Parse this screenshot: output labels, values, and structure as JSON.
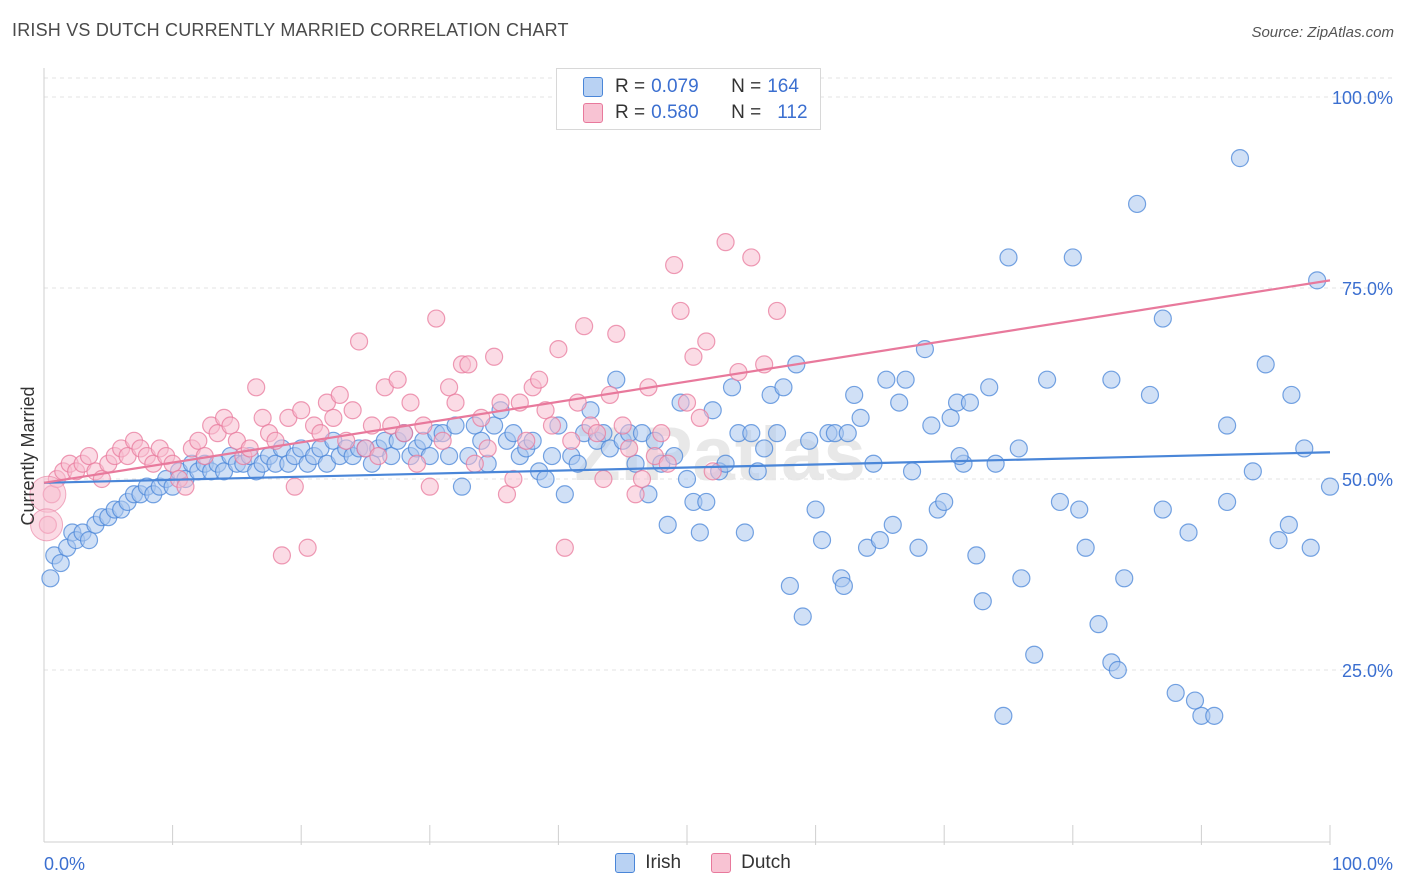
{
  "title": "IRISH VS DUTCH CURRENTLY MARRIED CORRELATION CHART",
  "source": "Source: ZipAtlas.com",
  "watermark": "ZIPatlas",
  "legend": [
    {
      "name": "Irish",
      "r_label": "R =",
      "r": "0.079",
      "n_label": "N =",
      "n": "164",
      "color": "#4a86d8",
      "fill": "#b9d2f3"
    },
    {
      "name": "Dutch",
      "r_label": "R =",
      "r": "0.580",
      "n_label": "N =",
      "n": "112",
      "color": "#e8799c",
      "fill": "#f8c3d3"
    }
  ],
  "chart_data": {
    "type": "scatter",
    "xlabel": "",
    "ylabel": "Currently Married",
    "xlim": [
      0,
      100
    ],
    "ylim": [
      0,
      105
    ],
    "x_tick_labels": [
      "0.0%",
      "100.0%"
    ],
    "y_tick_labels": [
      "25.0%",
      "50.0%",
      "75.0%",
      "100.0%"
    ],
    "y_ticks": [
      25,
      50,
      75,
      100
    ],
    "grid": "horizontal dashed",
    "legend_position": "top-center",
    "series": [
      {
        "name": "Irish",
        "color": "#4a86d8",
        "trend": [
          [
            0,
            49.5
          ],
          [
            100,
            53.5
          ]
        ],
        "points": [
          [
            0.5,
            37
          ],
          [
            0.8,
            40
          ],
          [
            1.3,
            39
          ],
          [
            1.8,
            41
          ],
          [
            2.2,
            43
          ],
          [
            2.5,
            42
          ],
          [
            3.0,
            43
          ],
          [
            3.5,
            42
          ],
          [
            4.0,
            44
          ],
          [
            4.5,
            45
          ],
          [
            5.0,
            45
          ],
          [
            5.5,
            46
          ],
          [
            6.0,
            46
          ],
          [
            6.5,
            47
          ],
          [
            7.0,
            48
          ],
          [
            7.5,
            48
          ],
          [
            8.0,
            49
          ],
          [
            8.5,
            48
          ],
          [
            9.0,
            49
          ],
          [
            9.5,
            50
          ],
          [
            10,
            49
          ],
          [
            10.5,
            51
          ],
          [
            11,
            50
          ],
          [
            11.5,
            52
          ],
          [
            12,
            51
          ],
          [
            12.5,
            52
          ],
          [
            13,
            51
          ],
          [
            13.5,
            52
          ],
          [
            14,
            51
          ],
          [
            14.5,
            53
          ],
          [
            15,
            52
          ],
          [
            15.5,
            52
          ],
          [
            16,
            53
          ],
          [
            16.5,
            51
          ],
          [
            17,
            52
          ],
          [
            17.5,
            53
          ],
          [
            18,
            52
          ],
          [
            18.5,
            54
          ],
          [
            19,
            52
          ],
          [
            19.5,
            53
          ],
          [
            20,
            54
          ],
          [
            20.5,
            52
          ],
          [
            21,
            53
          ],
          [
            21.5,
            54
          ],
          [
            22,
            52
          ],
          [
            22.5,
            55
          ],
          [
            23,
            53
          ],
          [
            23.5,
            54
          ],
          [
            24,
            53
          ],
          [
            24.5,
            54
          ],
          [
            25,
            54
          ],
          [
            25.5,
            52
          ],
          [
            26,
            54
          ],
          [
            26.5,
            55
          ],
          [
            27,
            53
          ],
          [
            27.5,
            55
          ],
          [
            28,
            56
          ],
          [
            28.5,
            53
          ],
          [
            29,
            54
          ],
          [
            29.5,
            55
          ],
          [
            30,
            53
          ],
          [
            30.5,
            56
          ],
          [
            31,
            56
          ],
          [
            31.5,
            53
          ],
          [
            32,
            57
          ],
          [
            32.5,
            49
          ],
          [
            33,
            53
          ],
          [
            33.5,
            57
          ],
          [
            34,
            55
          ],
          [
            34.5,
            52
          ],
          [
            35,
            57
          ],
          [
            35.5,
            59
          ],
          [
            36,
            55
          ],
          [
            36.5,
            56
          ],
          [
            37,
            53
          ],
          [
            37.5,
            54
          ],
          [
            38,
            55
          ],
          [
            38.5,
            51
          ],
          [
            39,
            50
          ],
          [
            39.5,
            53
          ],
          [
            40,
            57
          ],
          [
            40.5,
            48
          ],
          [
            41,
            53
          ],
          [
            41.5,
            52
          ],
          [
            42,
            56
          ],
          [
            42.5,
            59
          ],
          [
            43,
            55
          ],
          [
            43.5,
            56
          ],
          [
            44,
            54
          ],
          [
            44.5,
            63
          ],
          [
            45,
            55
          ],
          [
            45.5,
            56
          ],
          [
            46,
            52
          ],
          [
            46.5,
            56
          ],
          [
            47,
            48
          ],
          [
            47.5,
            55
          ],
          [
            48,
            52
          ],
          [
            48.5,
            44
          ],
          [
            49,
            53
          ],
          [
            49.5,
            60
          ],
          [
            50,
            50
          ],
          [
            50.5,
            47
          ],
          [
            51,
            43
          ],
          [
            51.5,
            47
          ],
          [
            52,
            59
          ],
          [
            52.5,
            51
          ],
          [
            53,
            52
          ],
          [
            53.5,
            62
          ],
          [
            54,
            56
          ],
          [
            54.5,
            43
          ],
          [
            55,
            56
          ],
          [
            55.5,
            51
          ],
          [
            56,
            54
          ],
          [
            56.5,
            61
          ],
          [
            57,
            56
          ],
          [
            57.5,
            62
          ],
          [
            58,
            36
          ],
          [
            58.5,
            65
          ],
          [
            59,
            32
          ],
          [
            59.5,
            55
          ],
          [
            60,
            46
          ],
          [
            60.5,
            42
          ],
          [
            61,
            56
          ],
          [
            61.5,
            56
          ],
          [
            62,
            37
          ],
          [
            62.5,
            56
          ],
          [
            63,
            61
          ],
          [
            63.5,
            58
          ],
          [
            64,
            41
          ],
          [
            64.5,
            52
          ],
          [
            65,
            42
          ],
          [
            65.5,
            63
          ],
          [
            66,
            44
          ],
          [
            66.5,
            60
          ],
          [
            67,
            63
          ],
          [
            67.5,
            51
          ],
          [
            68,
            41
          ],
          [
            68.5,
            67
          ],
          [
            69,
            57
          ],
          [
            69.5,
            46
          ],
          [
            70,
            47
          ],
          [
            70.5,
            58
          ],
          [
            71,
            60
          ],
          [
            71.5,
            52
          ],
          [
            72,
            60
          ],
          [
            72.5,
            40
          ],
          [
            73,
            34
          ],
          [
            73.5,
            62
          ],
          [
            74,
            52
          ],
          [
            75,
            79
          ],
          [
            76,
            37
          ],
          [
            77,
            27
          ],
          [
            78,
            63
          ],
          [
            79,
            47
          ],
          [
            80,
            79
          ],
          [
            81,
            41
          ],
          [
            82,
            31
          ],
          [
            83,
            63
          ],
          [
            84,
            37
          ],
          [
            85,
            86
          ],
          [
            86,
            61
          ],
          [
            87,
            46
          ],
          [
            88,
            22
          ],
          [
            89,
            43
          ],
          [
            90,
            19
          ],
          [
            91,
            19
          ],
          [
            92,
            47
          ],
          [
            93,
            92
          ],
          [
            94,
            51
          ],
          [
            95,
            65
          ],
          [
            96,
            42
          ],
          [
            97,
            61
          ],
          [
            98,
            54
          ],
          [
            99,
            76
          ],
          [
            100,
            49
          ],
          [
            62.2,
            36
          ],
          [
            71.2,
            53
          ],
          [
            74.6,
            19
          ],
          [
            75.8,
            54
          ],
          [
            80.5,
            46
          ],
          [
            83,
            26
          ],
          [
            87,
            71
          ],
          [
            89.5,
            21
          ],
          [
            92,
            57
          ],
          [
            96.8,
            44
          ],
          [
            98.5,
            41
          ],
          [
            83.5,
            25
          ]
        ]
      },
      {
        "name": "Dutch",
        "color": "#e8799c",
        "trend": [
          [
            0,
            49.5
          ],
          [
            100,
            76
          ]
        ],
        "points": [
          [
            0.3,
            44
          ],
          [
            0.6,
            48
          ],
          [
            1.0,
            50
          ],
          [
            1.5,
            51
          ],
          [
            2.0,
            52
          ],
          [
            2.5,
            51
          ],
          [
            3.0,
            52
          ],
          [
            3.5,
            53
          ],
          [
            4.0,
            51
          ],
          [
            4.5,
            50
          ],
          [
            5.0,
            52
          ],
          [
            5.5,
            53
          ],
          [
            6.0,
            54
          ],
          [
            6.5,
            53
          ],
          [
            7.0,
            55
          ],
          [
            7.5,
            54
          ],
          [
            8.0,
            53
          ],
          [
            8.5,
            52
          ],
          [
            9.0,
            54
          ],
          [
            9.5,
            53
          ],
          [
            10,
            52
          ],
          [
            10.5,
            50
          ],
          [
            11,
            49
          ],
          [
            11.5,
            54
          ],
          [
            12,
            55
          ],
          [
            12.5,
            53
          ],
          [
            13,
            57
          ],
          [
            13.5,
            56
          ],
          [
            14,
            58
          ],
          [
            14.5,
            57
          ],
          [
            15,
            55
          ],
          [
            15.5,
            53
          ],
          [
            16,
            54
          ],
          [
            16.5,
            62
          ],
          [
            17,
            58
          ],
          [
            17.5,
            56
          ],
          [
            18,
            55
          ],
          [
            18.5,
            40
          ],
          [
            19,
            58
          ],
          [
            19.5,
            49
          ],
          [
            20,
            59
          ],
          [
            20.5,
            41
          ],
          [
            21,
            57
          ],
          [
            21.5,
            56
          ],
          [
            22,
            60
          ],
          [
            22.5,
            58
          ],
          [
            23,
            61
          ],
          [
            23.5,
            55
          ],
          [
            24,
            59
          ],
          [
            24.5,
            68
          ],
          [
            25,
            54
          ],
          [
            25.5,
            57
          ],
          [
            26,
            53
          ],
          [
            26.5,
            62
          ],
          [
            27,
            57
          ],
          [
            27.5,
            63
          ],
          [
            28,
            56
          ],
          [
            28.5,
            60
          ],
          [
            29,
            52
          ],
          [
            29.5,
            57
          ],
          [
            30,
            49
          ],
          [
            30.5,
            71
          ],
          [
            31,
            55
          ],
          [
            31.5,
            62
          ],
          [
            32,
            60
          ],
          [
            32.5,
            65
          ],
          [
            33,
            65
          ],
          [
            33.5,
            52
          ],
          [
            34,
            58
          ],
          [
            34.5,
            54
          ],
          [
            35,
            66
          ],
          [
            35.5,
            60
          ],
          [
            36,
            48
          ],
          [
            36.5,
            50
          ],
          [
            37,
            60
          ],
          [
            37.5,
            55
          ],
          [
            38,
            62
          ],
          [
            38.5,
            63
          ],
          [
            39,
            59
          ],
          [
            39.5,
            57
          ],
          [
            40,
            67
          ],
          [
            40.5,
            41
          ],
          [
            41,
            55
          ],
          [
            41.5,
            60
          ],
          [
            42,
            70
          ],
          [
            42.5,
            57
          ],
          [
            43,
            56
          ],
          [
            43.5,
            50
          ],
          [
            44,
            61
          ],
          [
            44.5,
            69
          ],
          [
            45,
            57
          ],
          [
            45.5,
            54
          ],
          [
            46,
            48
          ],
          [
            46.5,
            50
          ],
          [
            47,
            62
          ],
          [
            47.5,
            53
          ],
          [
            48,
            56
          ],
          [
            48.5,
            52
          ],
          [
            49,
            78
          ],
          [
            49.5,
            72
          ],
          [
            50,
            60
          ],
          [
            50.5,
            66
          ],
          [
            51,
            58
          ],
          [
            51.5,
            68
          ],
          [
            52,
            51
          ],
          [
            53,
            81
          ],
          [
            54,
            64
          ],
          [
            55,
            79
          ],
          [
            56,
            65
          ],
          [
            57,
            72
          ]
        ]
      }
    ]
  }
}
